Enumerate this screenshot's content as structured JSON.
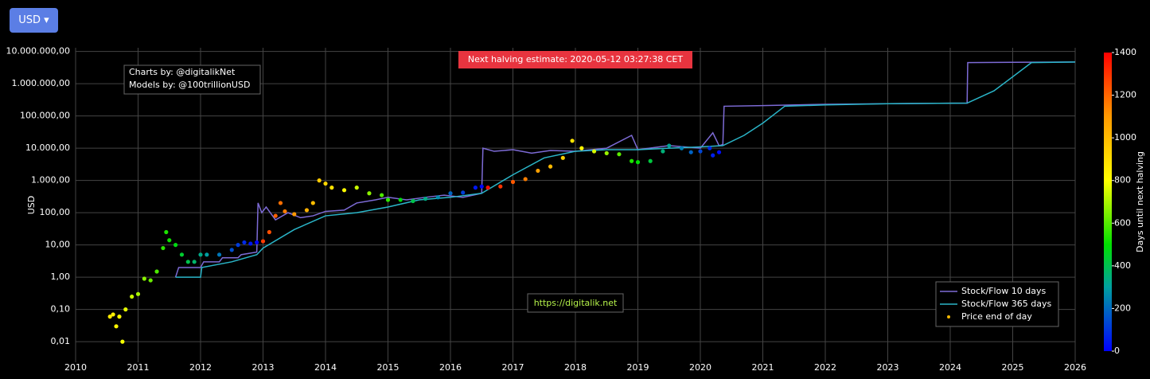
{
  "currency_button": "USD",
  "chart_data": {
    "type": "log-price",
    "y_label": "USD",
    "log_y": true,
    "grid": true,
    "xlim": [
      2010,
      2026
    ],
    "xticks": [
      2010,
      2011,
      2012,
      2013,
      2014,
      2015,
      2016,
      2017,
      2018,
      2019,
      2020,
      2021,
      2022,
      2023,
      2024,
      2025,
      2026
    ],
    "ylim": [
      0.0023,
      13000000
    ],
    "yticks": [
      {
        "value": 0.01,
        "label": "0,01"
      },
      {
        "value": 0.1,
        "label": "0,10"
      },
      {
        "value": 1,
        "label": "1,00"
      },
      {
        "value": 10,
        "label": "10,00"
      },
      {
        "value": 100,
        "label": "100,00"
      },
      {
        "value": 1000,
        "label": "1.000,00"
      },
      {
        "value": 10000,
        "label": "10.000,00"
      },
      {
        "value": 100000,
        "label": "100.000,00"
      },
      {
        "value": 1000000,
        "label": "1.000.000,00"
      },
      {
        "value": 10000000,
        "label": "10.000.000,00"
      }
    ],
    "annotations": [
      "Charts by: @digitalikNet",
      "Models by: @100trillionUSD"
    ],
    "halving_banner": "Next halving estimate: 2020-05-12 03:27:38 CET",
    "watermark": "https://digitalik.net",
    "legend_position": "bottom-right",
    "series": [
      {
        "name": "Stock/Flow 10 days",
        "type": "line",
        "color": "#7d6bd6",
        "x": [
          2011.6,
          2011.65,
          2012.0,
          2012.05,
          2012.3,
          2012.35,
          2012.6,
          2012.65,
          2012.9,
          2012.92,
          2012.98,
          2013.05,
          2013.2,
          2013.4,
          2013.6,
          2013.8,
          2014.0,
          2014.3,
          2014.5,
          2014.8,
          2015.0,
          2015.3,
          2015.6,
          2015.9,
          2016.2,
          2016.5,
          2016.52,
          2016.7,
          2017.0,
          2017.3,
          2017.6,
          2018.0,
          2018.5,
          2018.9,
          2019.0,
          2019.5,
          2020.0,
          2020.2,
          2020.3,
          2020.36,
          2020.38,
          2021,
          2022,
          2023,
          2024.27,
          2024.28,
          2025,
          2026
        ],
        "values": [
          1,
          2,
          2,
          3,
          3,
          4,
          4,
          5,
          6,
          200,
          100,
          150,
          60,
          100,
          70,
          80,
          110,
          120,
          200,
          250,
          300,
          250,
          300,
          350,
          300,
          400,
          10000,
          8000,
          9000,
          7000,
          8500,
          8000,
          10000,
          25000,
          9000,
          12000,
          10000,
          30000,
          12000,
          13000,
          200000,
          210000,
          230000,
          240000,
          250000,
          4500000,
          4600000,
          4700000
        ]
      },
      {
        "name": "Stock/Flow 365 days",
        "type": "line",
        "color": "#2ab5c8",
        "x": [
          2011.6,
          2012.0,
          2012.02,
          2012.5,
          2012.9,
          2013.0,
          2013.5,
          2014.0,
          2014.5,
          2015.0,
          2015.5,
          2016.0,
          2016.5,
          2017.0,
          2017.5,
          2018.0,
          2018.5,
          2019.0,
          2019.5,
          2020.0,
          2020.36,
          2020.7,
          2021.0,
          2021.35,
          2022,
          2023,
          2024.27,
          2024.7,
          2025.3,
          2026
        ],
        "values": [
          1,
          1,
          2,
          3,
          5,
          8,
          30,
          80,
          100,
          150,
          250,
          300,
          400,
          1500,
          5000,
          8000,
          9000,
          9000,
          10000,
          11000,
          12000,
          25000,
          60000,
          200000,
          220000,
          240000,
          250000,
          600000,
          4500000,
          4700000
        ]
      },
      {
        "name": "Price end of day",
        "type": "scatter",
        "color": "#f5b800",
        "x": [
          2010.55,
          2010.6,
          2010.65,
          2010.7,
          2010.75,
          2010.8,
          2010.9,
          2011.0,
          2011.1,
          2011.2,
          2011.3,
          2011.4,
          2011.45,
          2011.5,
          2011.6,
          2011.7,
          2011.8,
          2011.9,
          2012.0,
          2012.1,
          2012.3,
          2012.5,
          2012.6,
          2012.7,
          2012.8,
          2012.9,
          2013.0,
          2013.1,
          2013.2,
          2013.28,
          2013.35,
          2013.5,
          2013.7,
          2013.8,
          2013.9,
          2014.0,
          2014.1,
          2014.3,
          2014.5,
          2014.7,
          2014.9,
          2015.0,
          2015.2,
          2015.4,
          2015.6,
          2015.8,
          2016.0,
          2016.2,
          2016.4,
          2016.5,
          2016.6,
          2016.8,
          2017.0,
          2017.2,
          2017.4,
          2017.6,
          2017.8,
          2017.95,
          2018.1,
          2018.3,
          2018.5,
          2018.7,
          2018.9,
          2019.0,
          2019.2,
          2019.4,
          2019.5,
          2019.7,
          2019.85,
          2020.0,
          2020.15,
          2020.2,
          2020.3
        ],
        "values": [
          0.06,
          0.07,
          0.03,
          0.06,
          0.01,
          0.1,
          0.25,
          0.3,
          0.9,
          0.8,
          1.5,
          8,
          25,
          14,
          10,
          5,
          3,
          3,
          5,
          5,
          5,
          7,
          10,
          12,
          11,
          12,
          13,
          25,
          80,
          200,
          110,
          90,
          120,
          200,
          1000,
          800,
          600,
          500,
          600,
          400,
          350,
          250,
          250,
          230,
          270,
          300,
          400,
          420,
          600,
          650,
          600,
          650,
          900,
          1100,
          2000,
          2700,
          5000,
          17000,
          10000,
          8000,
          7000,
          6500,
          4000,
          3700,
          4000,
          8000,
          12000,
          10000,
          7500,
          8000,
          10000,
          6000,
          7500
        ],
        "days": [
          861,
          843,
          825,
          807,
          788,
          770,
          734,
          697,
          661,
          624,
          588,
          551,
          533,
          515,
          478,
          442,
          405,
          369,
          332,
          296,
          223,
          150,
          113,
          77,
          40,
          4,
          1285,
          1248,
          1212,
          1183,
          1157,
          1102,
          1029,
          993,
          956,
          920,
          883,
          810,
          737,
          664,
          591,
          555,
          482,
          409,
          336,
          263,
          190,
          117,
          44,
          7,
          1372,
          1299,
          1226,
          1153,
          1080,
          1007,
          935,
          880,
          825,
          752,
          679,
          606,
          533,
          496,
          423,
          350,
          314,
          241,
          186,
          131,
          77,
          58,
          22
        ]
      }
    ],
    "colorbar": {
      "title": "Days until next halving",
      "lim": [
        0,
        1400
      ],
      "ticks": [
        0,
        200,
        400,
        600,
        800,
        1000,
        1200,
        1400
      ],
      "colorscale": [
        [
          0,
          "#0000ff"
        ],
        [
          300,
          "#00a0a0"
        ],
        [
          500,
          "#00e000"
        ],
        [
          800,
          "#ffff00"
        ],
        [
          1100,
          "#ff9900"
        ],
        [
          1400,
          "#ff0000"
        ]
      ]
    }
  }
}
